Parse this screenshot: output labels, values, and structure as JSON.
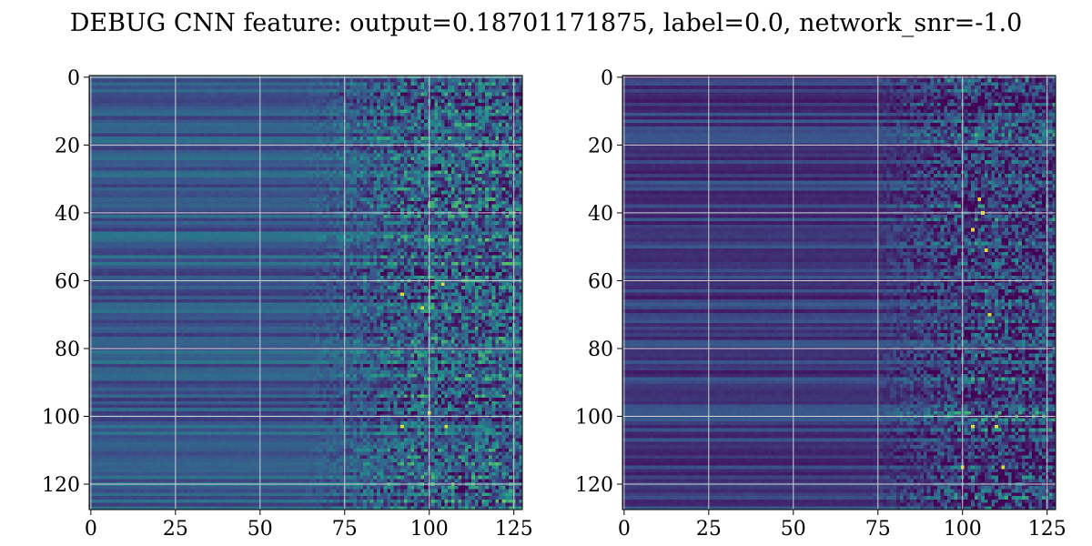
{
  "figure": {
    "title": "DEBUG CNN feature: output=0.18701171875, label=0.0, network_snr=-1.0"
  },
  "chart_data": [
    {
      "type": "heatmap",
      "colormap": "viridis",
      "rows": 128,
      "cols": 128,
      "xlim": [
        0,
        127
      ],
      "ylim": [
        127,
        0
      ],
      "xticks": [
        0,
        25,
        50,
        75,
        100,
        125
      ],
      "xtick_labels": [
        "0",
        "25",
        "50",
        "75",
        "100",
        "125"
      ],
      "yticks": [
        0,
        20,
        40,
        60,
        80,
        100,
        120
      ],
      "ytick_labels": [
        "0",
        "20",
        "40",
        "60",
        "80",
        "100",
        "120"
      ],
      "grid": true,
      "value_profile": {
        "smooth_band_cols": [
          0,
          60
        ],
        "noisy_band_cols": [
          60,
          127
        ],
        "base_level": 0.28,
        "hot_spots": [
          [
            61,
            104
          ],
          [
            64,
            92
          ],
          [
            68,
            98
          ],
          [
            99,
            100
          ],
          [
            103,
            92
          ],
          [
            103,
            105
          ]
        ]
      }
    },
    {
      "type": "heatmap",
      "colormap": "viridis",
      "rows": 128,
      "cols": 128,
      "xlim": [
        0,
        127
      ],
      "ylim": [
        127,
        0
      ],
      "xticks": [
        0,
        25,
        50,
        75,
        100,
        125
      ],
      "xtick_labels": [
        "0",
        "25",
        "50",
        "75",
        "100",
        "125"
      ],
      "yticks": [
        0,
        20,
        40,
        60,
        80,
        100,
        120
      ],
      "ytick_labels": [
        "0",
        "20",
        "40",
        "60",
        "80",
        "100",
        "120"
      ],
      "grid": true,
      "value_profile": {
        "smooth_band_cols": [
          0,
          70
        ],
        "noisy_band_cols": [
          70,
          127
        ],
        "base_level": 0.18,
        "hot_spots": [
          [
            36,
            105
          ],
          [
            40,
            106
          ],
          [
            45,
            103
          ],
          [
            51,
            107
          ],
          [
            70,
            108
          ],
          [
            103,
            103
          ],
          [
            103,
            110
          ],
          [
            115,
            100
          ],
          [
            115,
            112
          ]
        ]
      }
    }
  ]
}
